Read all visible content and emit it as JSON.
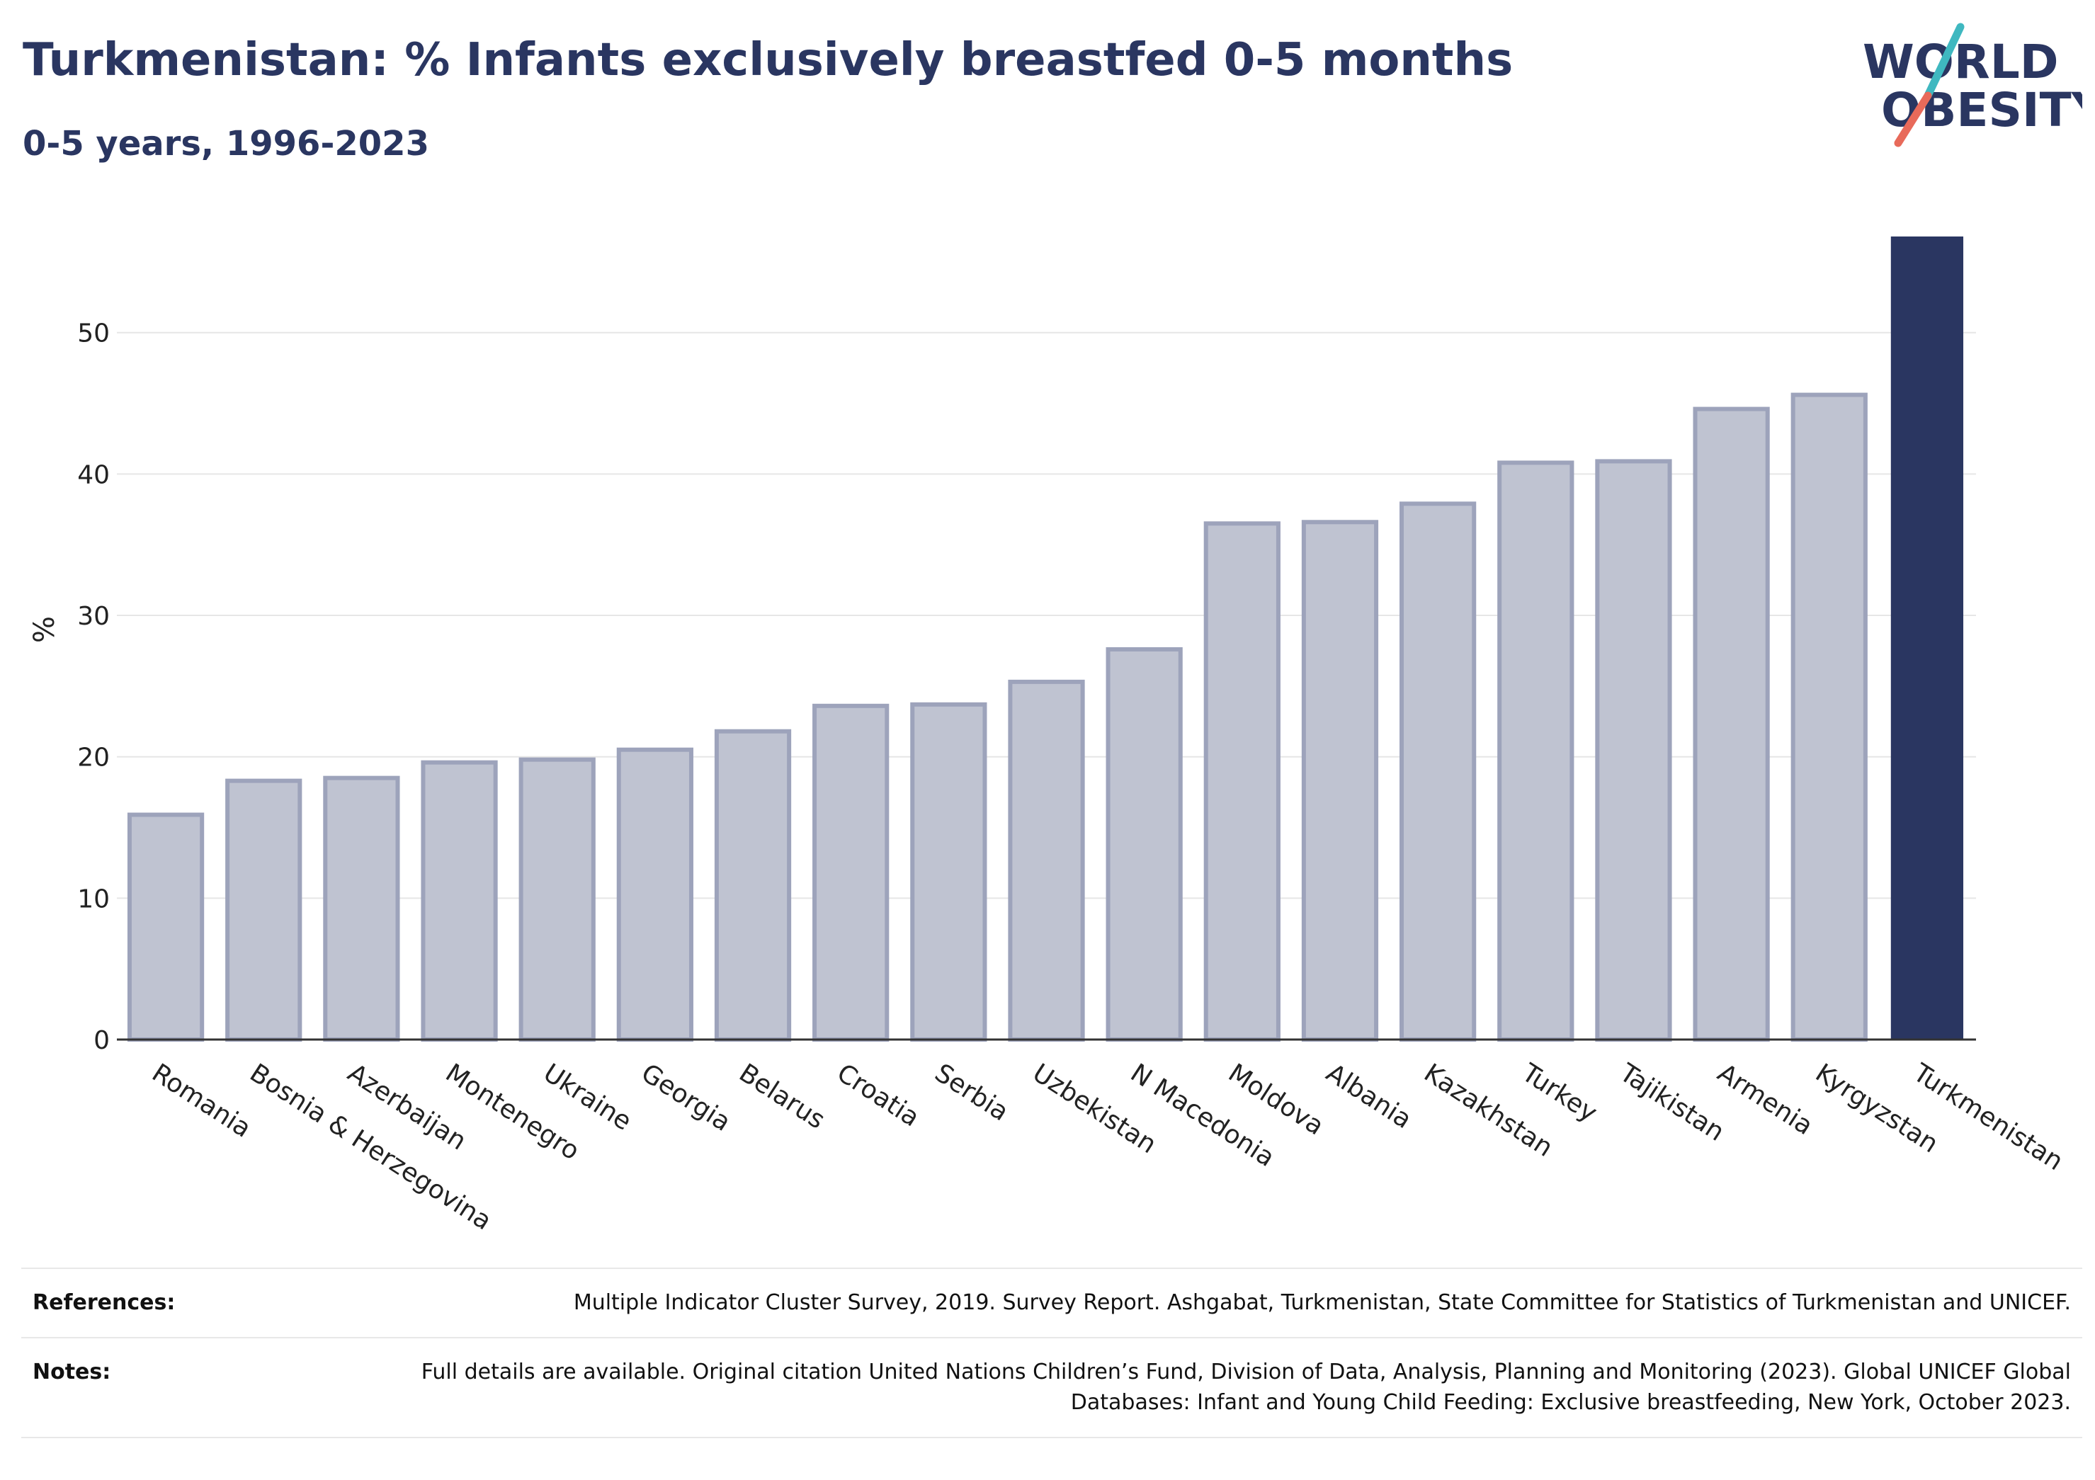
{
  "header": {
    "title": "Turkmenistan: % Infants exclusively breastfed 0-5 months",
    "subtitle": "0-5 years, 1996-2023"
  },
  "logo": {
    "line1": "WORLD",
    "line2": "OBESITY",
    "colors": {
      "text": "#2a3661",
      "slash_top": "#3fb8c0",
      "slash_bottom": "#e86a5a"
    }
  },
  "colors": {
    "highlight_bar": "#2a3661",
    "other_bar_fill": "#bfc3d1",
    "other_bar_border": "#9da3bb",
    "gridline": "#e6e6e6",
    "axis_line": "#333333"
  },
  "chart_data": {
    "type": "bar",
    "title": "Turkmenistan: % Infants exclusively breastfed 0-5 months",
    "subtitle": "0-5 years, 1996-2023",
    "xlabel": "",
    "ylabel": "%",
    "ylim": [
      0,
      58
    ],
    "yticks": [
      0,
      10,
      20,
      30,
      40,
      50
    ],
    "grid": true,
    "highlight": "Turkmenistan",
    "categories": [
      "Romania",
      "Bosnia & Herzegovina",
      "Azerbaijan",
      "Montenegro",
      "Ukraine",
      "Georgia",
      "Belarus",
      "Croatia",
      "Serbia",
      "Uzbekistan",
      "N Macedonia",
      "Moldova",
      "Albania",
      "Kazakhstan",
      "Turkey",
      "Tajikistan",
      "Armenia",
      "Kyrgyzstan",
      "Turkmenistan"
    ],
    "values": [
      15.9,
      18.3,
      18.5,
      19.6,
      19.8,
      20.5,
      21.8,
      23.6,
      23.7,
      25.3,
      27.6,
      36.5,
      36.6,
      37.9,
      40.8,
      40.9,
      44.6,
      45.6,
      56.8
    ]
  },
  "footer": {
    "references_label": "References:",
    "references_text": "Multiple Indicator Cluster Survey, 2019. Survey Report. Ashgabat, Turkmenistan, State Committee for Statistics of Turkmenistan and UNICEF.",
    "notes_label": "Notes:",
    "notes_text": "Full details are available. Original citation United Nations Children’s Fund, Division of Data, Analysis, Planning and Monitoring (2023). Global UNICEF Global Databases: Infant and Young Child Feeding: Exclusive breastfeeding, New York, October 2023."
  }
}
